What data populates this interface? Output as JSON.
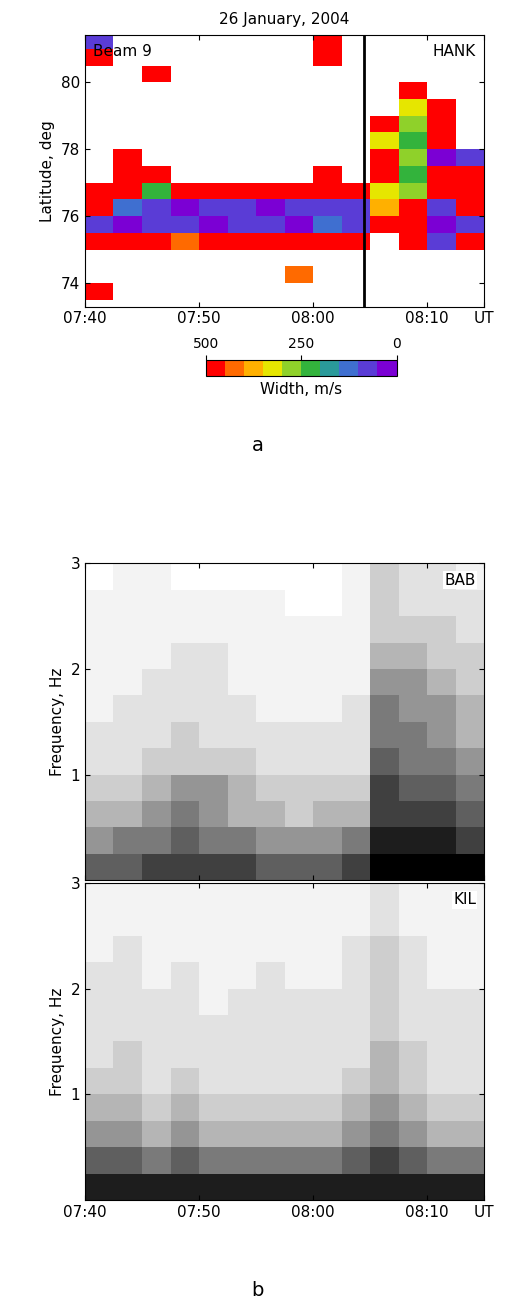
{
  "chart_data": [
    {
      "type": "heatmap",
      "title": "26 January, 2004",
      "beam": "Beam 9",
      "station": "HANK",
      "panel_label": "a",
      "ylabel": "Latitude, deg",
      "xlim": [
        460,
        495
      ],
      "xticks": [
        {
          "value": 460,
          "label": "07:40"
        },
        {
          "value": 470,
          "label": "07:50"
        },
        {
          "value": 480,
          "label": "08:00"
        },
        {
          "value": 490,
          "label": "08:10"
        },
        {
          "value": 495,
          "label": "UT"
        }
      ],
      "ylim": [
        73.3,
        81.4
      ],
      "yticks": [
        74,
        76,
        78,
        80
      ],
      "vertical_line": 484.5,
      "x_edges": [
        460,
        462.5,
        465,
        467.5,
        470,
        472.5,
        475,
        477.5,
        480,
        482.5,
        485,
        487.5,
        490,
        492.5,
        495
      ],
      "y_edges": [
        73.5,
        74,
        74.5,
        75,
        75.5,
        76,
        76.5,
        77,
        77.5,
        78,
        78.5,
        79,
        79.5,
        80,
        80.5,
        81,
        81.5
      ],
      "cells": [
        [
          450,
          null,
          null,
          null,
          null,
          null,
          null,
          null,
          null,
          null,
          null,
          null,
          null,
          null
        ],
        [
          null,
          null,
          null,
          null,
          null,
          null,
          null,
          400,
          null,
          null,
          null,
          null,
          null,
          null
        ],
        [
          null,
          null,
          null,
          null,
          null,
          null,
          null,
          null,
          null,
          null,
          null,
          null,
          null,
          null
        ],
        [
          450,
          450,
          450,
          400,
          450,
          450,
          450,
          450,
          450,
          450,
          null,
          450,
          50,
          450
        ],
        [
          60,
          40,
          50,
          80,
          40,
          60,
          50,
          40,
          100,
          60,
          450,
          450,
          40,
          50
        ],
        [
          450,
          100,
          60,
          40,
          50,
          80,
          40,
          60,
          60,
          80,
          350,
          450,
          80,
          450
        ],
        [
          450,
          450,
          200,
          450,
          450,
          450,
          450,
          450,
          450,
          450,
          300,
          250,
          450,
          450
        ],
        [
          null,
          450,
          450,
          null,
          null,
          null,
          null,
          null,
          450,
          null,
          450,
          200,
          450,
          450
        ],
        [
          null,
          450,
          null,
          null,
          null,
          null,
          null,
          null,
          null,
          null,
          450,
          250,
          40,
          60
        ],
        [
          null,
          null,
          null,
          null,
          null,
          null,
          null,
          null,
          null,
          null,
          300,
          200,
          450,
          null
        ],
        [
          null,
          null,
          null,
          null,
          null,
          null,
          null,
          null,
          null,
          null,
          450,
          250,
          450,
          null
        ],
        [
          null,
          null,
          null,
          null,
          null,
          null,
          null,
          null,
          null,
          null,
          null,
          300,
          450,
          null
        ],
        [
          null,
          null,
          null,
          null,
          null,
          null,
          null,
          null,
          null,
          null,
          null,
          450,
          null,
          null
        ],
        [
          null,
          null,
          450,
          null,
          null,
          null,
          null,
          null,
          null,
          null,
          null,
          null,
          null,
          null
        ],
        [
          450,
          null,
          null,
          null,
          null,
          null,
          null,
          null,
          450,
          null,
          null,
          null,
          null,
          null
        ],
        [
          60,
          null,
          null,
          null,
          null,
          null,
          null,
          null,
          450,
          null,
          null,
          null,
          null,
          null
        ]
      ],
      "colors": [
        "#7b00d4",
        "#5a3cd6",
        "#3f6fd0",
        "#2a9a9a",
        "#33b33c",
        "#8fd12a",
        "#e6e600",
        "#ffb000",
        "#ff6a00",
        "#ff0000"
      ],
      "colorbar": {
        "label": "Width, m/s",
        "range": [
          500,
          0
        ],
        "ticks": [
          500,
          250,
          0
        ]
      }
    },
    {
      "type": "heatmap",
      "station": "BAB",
      "ylabel": "Frequency, Hz",
      "tick_labels": "y",
      "xlim": [
        460,
        495
      ],
      "xticks": [
        {
          "value": 460,
          "label": "07:40"
        },
        {
          "value": 470,
          "label": "07:50"
        },
        {
          "value": 480,
          "label": "08:00"
        },
        {
          "value": 490,
          "label": "08:10"
        },
        {
          "value": 495,
          "label": "UT"
        }
      ],
      "ylim": [
        0,
        3
      ],
      "yticks": [
        1,
        2,
        3
      ],
      "x_edges": [
        460,
        462.5,
        465,
        467.5,
        470,
        472.5,
        475,
        477.5,
        480,
        482.5,
        485,
        487.5,
        490,
        492.5,
        495
      ],
      "y_edges": [
        0,
        0.25,
        0.5,
        0.75,
        1,
        1.25,
        1.5,
        1.75,
        2,
        2.25,
        2.5,
        2.75,
        3
      ],
      "clim": [
        0,
        10
      ],
      "cells": [
        [
          7,
          7,
          8,
          8,
          8,
          8,
          7,
          7,
          7,
          8,
          10,
          10,
          10,
          10
        ],
        [
          5,
          6,
          6,
          7,
          6,
          6,
          5,
          5,
          5,
          6,
          9,
          9,
          9,
          8
        ],
        [
          4,
          4,
          5,
          6,
          5,
          4,
          4,
          3,
          4,
          4,
          8,
          8,
          8,
          7
        ],
        [
          3,
          3,
          4,
          5,
          5,
          4,
          3,
          3,
          3,
          3,
          8,
          7,
          7,
          6
        ],
        [
          2,
          2,
          3,
          3,
          3,
          3,
          2,
          2,
          2,
          2,
          7,
          6,
          6,
          5
        ],
        [
          2,
          2,
          2,
          3,
          2,
          2,
          2,
          2,
          2,
          2,
          6,
          6,
          5,
          4
        ],
        [
          1,
          2,
          2,
          2,
          2,
          2,
          1,
          1,
          1,
          2,
          6,
          5,
          5,
          4
        ],
        [
          1,
          1,
          2,
          2,
          2,
          1,
          1,
          1,
          1,
          1,
          5,
          5,
          4,
          3
        ],
        [
          1,
          1,
          1,
          2,
          2,
          1,
          1,
          1,
          1,
          1,
          4,
          4,
          3,
          3
        ],
        [
          1,
          1,
          1,
          1,
          1,
          1,
          1,
          1,
          1,
          1,
          3,
          3,
          3,
          2
        ],
        [
          1,
          1,
          1,
          1,
          1,
          1,
          1,
          0,
          0,
          1,
          3,
          2,
          2,
          2
        ],
        [
          0,
          1,
          1,
          0,
          0,
          0,
          0,
          0,
          0,
          1,
          3,
          2,
          2,
          1
        ]
      ]
    },
    {
      "type": "heatmap",
      "station": "KIL",
      "ylabel": "Frequency, Hz",
      "panel_label": "b",
      "xlim": [
        460,
        495
      ],
      "xticks": [
        {
          "value": 460,
          "label": "07:40"
        },
        {
          "value": 470,
          "label": "07:50"
        },
        {
          "value": 480,
          "label": "08:00"
        },
        {
          "value": 490,
          "label": "08:10"
        },
        {
          "value": 495,
          "label": "UT"
        }
      ],
      "ylim": [
        0,
        3
      ],
      "yticks": [
        1,
        2,
        3
      ],
      "x_edges": [
        460,
        462.5,
        465,
        467.5,
        470,
        472.5,
        475,
        477.5,
        480,
        482.5,
        485,
        487.5,
        490,
        492.5,
        495
      ],
      "y_edges": [
        0,
        0.25,
        0.5,
        0.75,
        1,
        1.25,
        1.5,
        1.75,
        2,
        2.25,
        2.5,
        2.75,
        3
      ],
      "clim": [
        0,
        10
      ],
      "cells": [
        [
          9,
          9,
          9,
          9,
          9,
          9,
          9,
          9,
          9,
          9,
          9,
          9,
          9,
          9
        ],
        [
          7,
          7,
          6,
          7,
          6,
          6,
          6,
          6,
          6,
          7,
          8,
          7,
          6,
          6
        ],
        [
          5,
          5,
          4,
          5,
          4,
          4,
          4,
          4,
          4,
          5,
          6,
          5,
          4,
          4
        ],
        [
          4,
          4,
          3,
          4,
          3,
          3,
          3,
          3,
          3,
          4,
          5,
          4,
          3,
          3
        ],
        [
          3,
          3,
          2,
          3,
          2,
          2,
          2,
          2,
          2,
          3,
          4,
          3,
          2,
          2
        ],
        [
          2,
          3,
          2,
          2,
          2,
          2,
          2,
          2,
          2,
          2,
          4,
          3,
          2,
          2
        ],
        [
          2,
          2,
          2,
          2,
          2,
          2,
          2,
          2,
          2,
          2,
          3,
          2,
          2,
          2
        ],
        [
          2,
          2,
          2,
          2,
          1,
          2,
          2,
          2,
          2,
          2,
          3,
          2,
          2,
          2
        ],
        [
          2,
          2,
          1,
          2,
          1,
          1,
          2,
          1,
          1,
          2,
          3,
          2,
          1,
          1
        ],
        [
          1,
          2,
          1,
          1,
          1,
          1,
          1,
          1,
          1,
          2,
          3,
          2,
          1,
          1
        ],
        [
          1,
          1,
          1,
          1,
          1,
          1,
          1,
          1,
          1,
          1,
          2,
          1,
          1,
          1
        ],
        [
          1,
          1,
          1,
          1,
          1,
          1,
          1,
          1,
          1,
          1,
          2,
          1,
          1,
          1
        ]
      ]
    }
  ]
}
